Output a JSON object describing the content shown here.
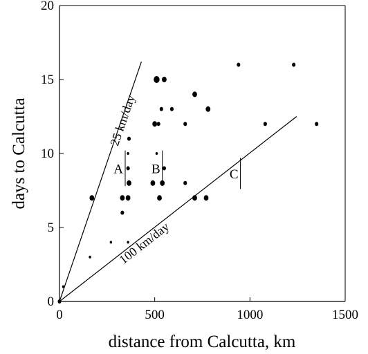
{
  "chart_data": {
    "type": "scatter",
    "xlabel": "distance from Calcutta, km",
    "ylabel": "days to Calcutta",
    "xlim": [
      0,
      1500
    ],
    "ylim": [
      0,
      20
    ],
    "xticks": [
      "0",
      "500",
      "1000",
      "1500"
    ],
    "yticks": [
      "0",
      "5",
      "10",
      "15",
      "20"
    ],
    "grid": false,
    "points": [
      {
        "x": 0,
        "y": 0,
        "s": 3
      },
      {
        "x": 20,
        "y": 1,
        "s": 2
      },
      {
        "x": 160,
        "y": 3,
        "s": 2
      },
      {
        "x": 170,
        "y": 7,
        "s": 4
      },
      {
        "x": 270,
        "y": 4,
        "s": 2
      },
      {
        "x": 330,
        "y": 6,
        "s": 3
      },
      {
        "x": 330,
        "y": 7,
        "s": 4
      },
      {
        "x": 360,
        "y": 4,
        "s": 2
      },
      {
        "x": 360,
        "y": 7,
        "s": 4
      },
      {
        "x": 365,
        "y": 8,
        "s": 4
      },
      {
        "x": 360,
        "y": 9,
        "s": 3
      },
      {
        "x": 360,
        "y": 10,
        "s": 2
      },
      {
        "x": 365,
        "y": 11,
        "s": 3
      },
      {
        "x": 490,
        "y": 8,
        "s": 4
      },
      {
        "x": 510,
        "y": 10,
        "s": 2
      },
      {
        "x": 500,
        "y": 12,
        "s": 4
      },
      {
        "x": 520,
        "y": 12,
        "s": 3
      },
      {
        "x": 510,
        "y": 15,
        "s": 5
      },
      {
        "x": 525,
        "y": 7,
        "s": 4
      },
      {
        "x": 540,
        "y": 8,
        "s": 4
      },
      {
        "x": 550,
        "y": 9,
        "s": 3
      },
      {
        "x": 535,
        "y": 13,
        "s": 3
      },
      {
        "x": 550,
        "y": 15,
        "s": 4
      },
      {
        "x": 590,
        "y": 13,
        "s": 3
      },
      {
        "x": 660,
        "y": 8,
        "s": 3
      },
      {
        "x": 660,
        "y": 12,
        "s": 3
      },
      {
        "x": 710,
        "y": 7,
        "s": 4
      },
      {
        "x": 710,
        "y": 14,
        "s": 4
      },
      {
        "x": 770,
        "y": 7,
        "s": 4
      },
      {
        "x": 780,
        "y": 13,
        "s": 4
      },
      {
        "x": 940,
        "y": 16,
        "s": 3
      },
      {
        "x": 1080,
        "y": 12,
        "s": 3
      },
      {
        "x": 1230,
        "y": 16,
        "s": 3
      },
      {
        "x": 1350,
        "y": 12,
        "s": 3
      }
    ],
    "reference_lines": [
      {
        "name": "25 km/day",
        "x": [
          0,
          430
        ],
        "y": [
          0,
          16.2
        ]
      },
      {
        "name": "100 km/day",
        "x": [
          0,
          1245
        ],
        "y": [
          0,
          12.5
        ]
      }
    ],
    "group_markers": [
      {
        "label": "A",
        "x": 345,
        "y": [
          7.8,
          10.2
        ]
      },
      {
        "label": "B",
        "x": 540,
        "y": [
          7.8,
          10.2
        ]
      },
      {
        "label": "C",
        "x": 950,
        "y": [
          7.6,
          9.7
        ]
      }
    ]
  }
}
